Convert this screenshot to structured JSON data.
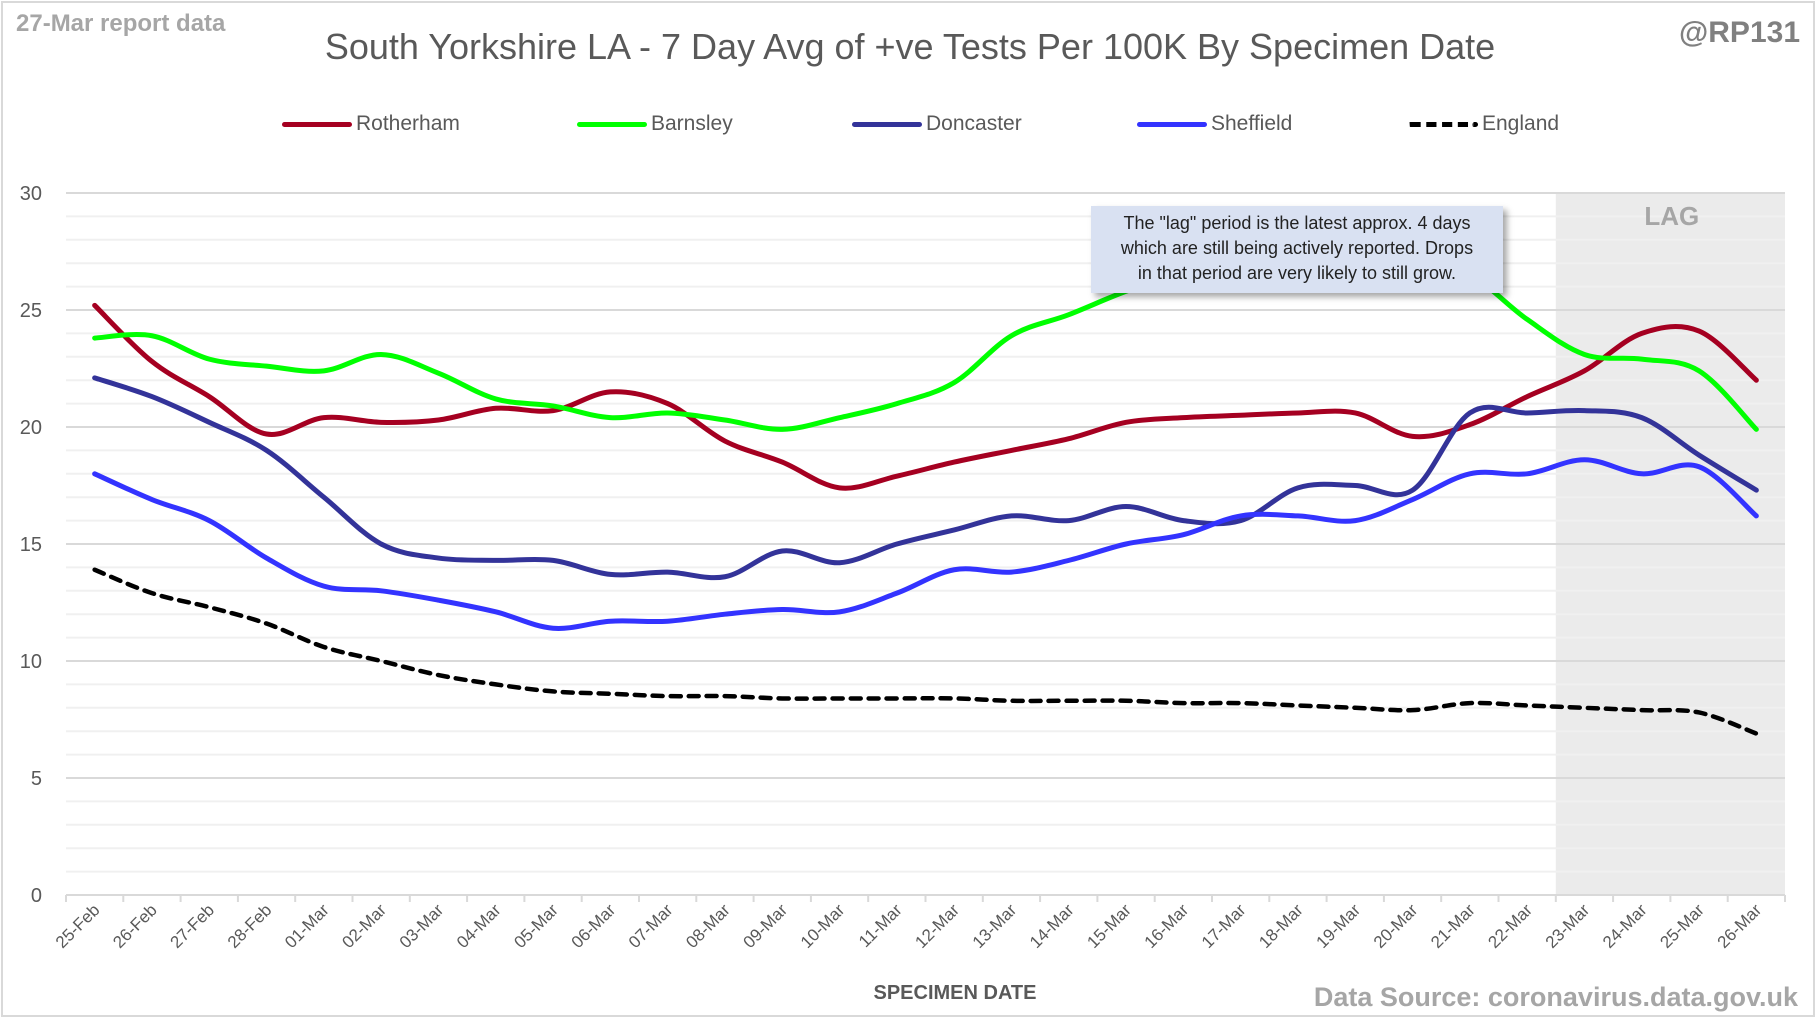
{
  "header": {
    "report_note": "27-Mar report data",
    "handle": "@RP131",
    "source": "Data Source: coronavirus.data.gov.uk"
  },
  "annotation": {
    "lines": [
      "The \"lag\" period is the latest approx. 4 days",
      "which are still being actively reported.  Drops",
      "in that period are very likely to still grow."
    ]
  },
  "chart_data": {
    "type": "line",
    "title": "South Yorkshire LA - 7 Day Avg of +ve Tests Per 100K By Specimen Date",
    "xlabel": "SPECIMEN DATE",
    "ylabel": "",
    "ylim": [
      0,
      30
    ],
    "yticks": [
      0,
      5,
      10,
      15,
      20,
      25,
      30
    ],
    "minor_grid_step": 1,
    "grid": true,
    "legend_position": "top",
    "shaded_region": {
      "label": "LAG",
      "from": "23-Mar",
      "to": "26-Mar",
      "color": "#ebebeb"
    },
    "categories": [
      "25-Feb",
      "26-Feb",
      "27-Feb",
      "28-Feb",
      "01-Mar",
      "02-Mar",
      "03-Mar",
      "04-Mar",
      "05-Mar",
      "06-Mar",
      "07-Mar",
      "08-Mar",
      "09-Mar",
      "10-Mar",
      "11-Mar",
      "12-Mar",
      "13-Mar",
      "14-Mar",
      "15-Mar",
      "16-Mar",
      "17-Mar",
      "18-Mar",
      "19-Mar",
      "20-Mar",
      "21-Mar",
      "22-Mar",
      "23-Mar",
      "24-Mar",
      "25-Mar",
      "26-Mar"
    ],
    "series": [
      {
        "name": "Rotherham",
        "color": "#a50021",
        "dashed": false,
        "values": [
          25.2,
          22.8,
          21.3,
          19.7,
          20.4,
          20.2,
          20.3,
          20.8,
          20.7,
          21.5,
          21.0,
          19.4,
          18.5,
          17.4,
          17.9,
          18.5,
          19.0,
          19.5,
          20.2,
          20.4,
          20.5,
          20.6,
          20.6,
          19.6,
          20.1,
          21.3,
          22.4,
          24.0,
          24.1,
          22.0
        ]
      },
      {
        "name": "Barnsley",
        "color": "#00ff00",
        "dashed": false,
        "values": [
          23.8,
          23.9,
          22.9,
          22.6,
          22.4,
          23.1,
          22.3,
          21.2,
          20.9,
          20.4,
          20.6,
          20.3,
          19.9,
          20.4,
          21.0,
          21.9,
          23.9,
          24.8,
          25.8,
          26.6,
          27.0,
          27.2,
          27.3,
          27.1,
          26.5,
          24.6,
          23.1,
          22.9,
          22.4,
          19.9
        ]
      },
      {
        "name": "Doncaster",
        "color": "#333399",
        "dashed": false,
        "values": [
          22.1,
          21.3,
          20.2,
          19.0,
          17.0,
          15.0,
          14.4,
          14.3,
          14.3,
          13.7,
          13.8,
          13.6,
          14.7,
          14.2,
          15.0,
          15.6,
          16.2,
          16.0,
          16.6,
          16.0,
          16.0,
          17.4,
          17.5,
          17.3,
          20.6,
          20.6,
          20.7,
          20.4,
          18.8,
          17.3
        ]
      },
      {
        "name": "Sheffield",
        "color": "#3333ff",
        "dashed": false,
        "values": [
          18.0,
          16.9,
          16.0,
          14.4,
          13.2,
          13.0,
          12.6,
          12.1,
          11.4,
          11.7,
          11.7,
          12.0,
          12.2,
          12.1,
          12.9,
          13.9,
          13.8,
          14.3,
          15.0,
          15.4,
          16.2,
          16.2,
          16.0,
          16.9,
          18.0,
          18.0,
          18.6,
          18.0,
          18.3,
          16.2
        ]
      },
      {
        "name": "England",
        "color": "#000000",
        "dashed": true,
        "values": [
          13.9,
          12.9,
          12.3,
          11.6,
          10.6,
          10.0,
          9.4,
          9.0,
          8.7,
          8.6,
          8.5,
          8.5,
          8.4,
          8.4,
          8.4,
          8.4,
          8.3,
          8.3,
          8.3,
          8.2,
          8.2,
          8.1,
          8.0,
          7.9,
          8.2,
          8.1,
          8.0,
          7.9,
          7.8,
          6.9
        ]
      }
    ]
  }
}
